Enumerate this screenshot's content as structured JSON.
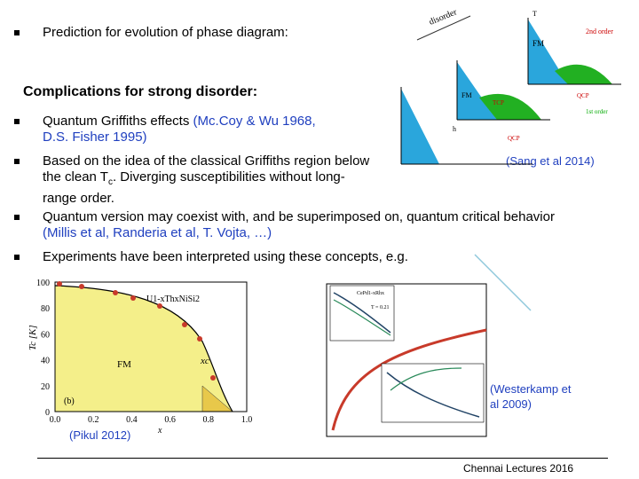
{
  "intro": "Prediction for evolution of phase diagram:",
  "heading": "Complications for strong disorder:",
  "bullets": [
    {
      "parts": [
        {
          "text": "Quantum Griffiths effects ",
          "kind": "plain"
        },
        {
          "text": "(Mc.Coy & Wu 1968, D.S. Fisher 1995)",
          "kind": "cite"
        }
      ]
    },
    {
      "parts": [
        {
          "text": "Based on the idea of the classical Griffiths region below the clean T",
          "kind": "plain"
        },
        {
          "text": "c",
          "kind": "sub"
        },
        {
          "text": ". Diverging susceptibilities without long-range order.",
          "kind": "plain"
        }
      ]
    },
    {
      "parts": [
        {
          "text": "Quantum version may coexist with, and be superimposed on, quantum critical behavior ",
          "kind": "plain"
        },
        {
          "text": "(Millis et al, Randeria et al, T. Vojta, …)",
          "kind": "cite"
        }
      ]
    },
    {
      "parts": [
        {
          "text": "Experiments have been interpreted using these concepts, e.g.",
          "kind": "plain"
        }
      ]
    }
  ],
  "citations": {
    "sang": "(Sang et al 2014)",
    "westerkamp": "(Westerkamp et al 2009)",
    "pikul": "(Pikul 2012)"
  },
  "footer": "Chennai Lectures 2016",
  "diagram": {
    "disorder": "disorder",
    "fm": "FM",
    "t": "T",
    "h": "h",
    "qcp": "QCP",
    "tcp": "TCP",
    "first_order": "1st order",
    "second_order": "2nd order"
  },
  "figure_left": {
    "compound": "U1-xThxNiSi2",
    "phase": "FM",
    "panel": "(b)",
    "xc": "xc",
    "ylabel": "Tc [K]",
    "xlabel": "x",
    "yticks": [
      "0",
      "20",
      "40",
      "60",
      "80",
      "100"
    ],
    "xticks": [
      "0.0",
      "0.2",
      "0.4",
      "0.6",
      "0.8",
      "1.0"
    ]
  },
  "figure_right": {
    "compound": "CePd1-xRhx",
    "temperature": "T = 0.21"
  }
}
